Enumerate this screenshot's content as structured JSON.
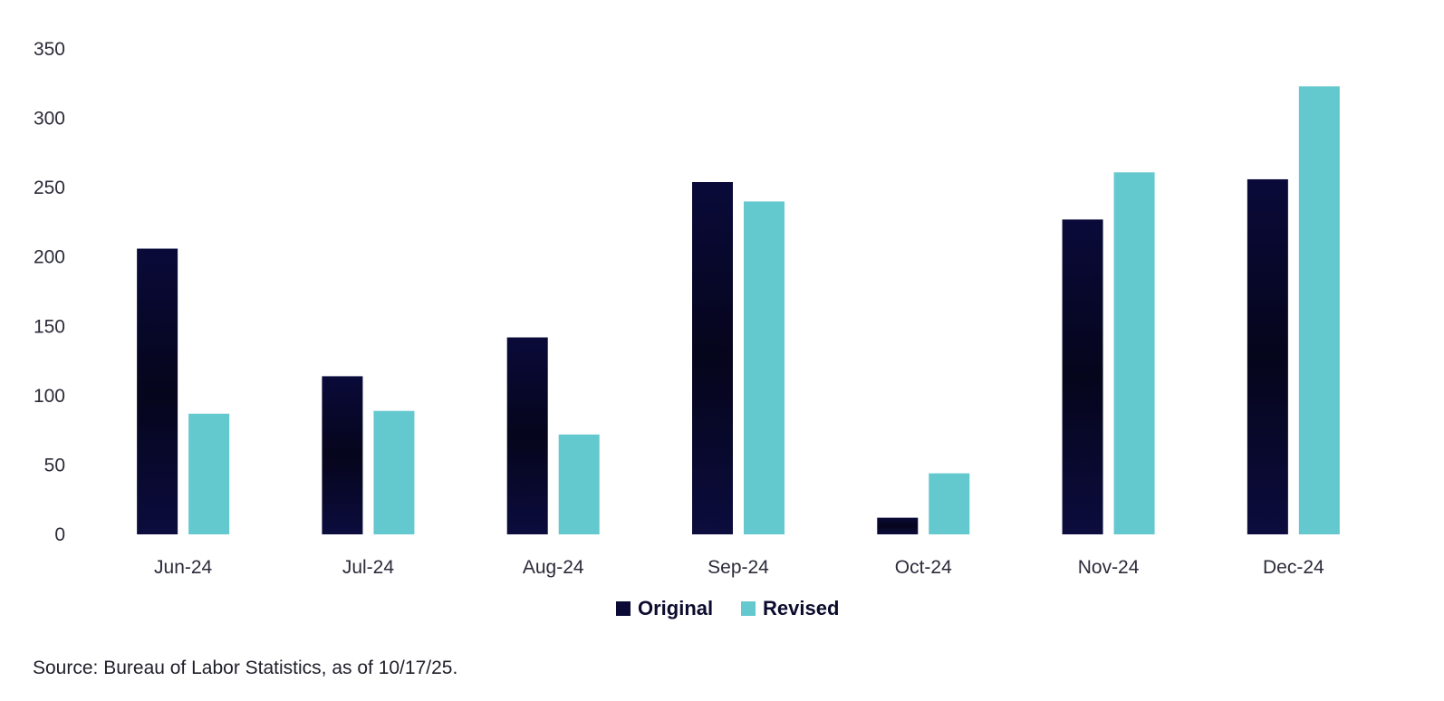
{
  "chart_data": {
    "type": "bar",
    "categories": [
      "Jun-24",
      "Jul-24",
      "Aug-24",
      "Sep-24",
      "Oct-24",
      "Nov-24",
      "Dec-24"
    ],
    "series": [
      {
        "name": "Original",
        "color": "#0a0a35",
        "values": [
          206,
          114,
          142,
          254,
          12,
          227,
          256
        ]
      },
      {
        "name": "Revised",
        "color": "#64c8cf",
        "values": [
          87,
          89,
          72,
          240,
          44,
          261,
          323
        ]
      }
    ],
    "title": "",
    "xlabel": "",
    "ylabel": "",
    "ylim": [
      0,
      350
    ],
    "yticks": [
      0,
      50,
      100,
      150,
      200,
      250,
      300,
      350
    ],
    "grid": false,
    "legend": "bottom-center"
  },
  "source": "Source: Bureau of Labor Statistics, as of 10/17/25."
}
